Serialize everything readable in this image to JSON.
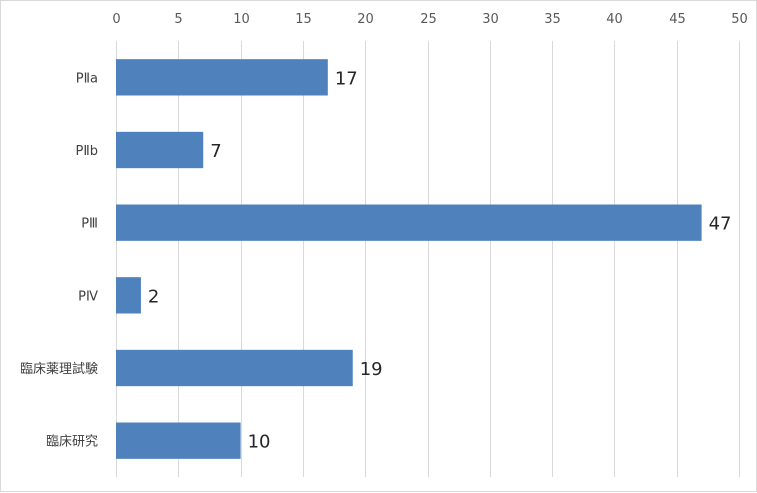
{
  "chart_data": {
    "type": "bar",
    "orientation": "horizontal",
    "categories": [
      "PⅡa",
      "PⅡb",
      "PⅢ",
      "PⅣ",
      "臨床薬理試験",
      "臨床研究"
    ],
    "values": [
      17,
      7,
      47,
      2,
      19,
      10
    ],
    "title": "",
    "xlabel": "",
    "ylabel": "",
    "xlim": [
      0,
      50
    ],
    "x_ticks": [
      0,
      5,
      10,
      15,
      20,
      25,
      30,
      35,
      40,
      45,
      50
    ],
    "x_axis_position": "top",
    "grid": true,
    "legend": "none",
    "data_labels": true,
    "bar_color": "#4f81bd"
  }
}
